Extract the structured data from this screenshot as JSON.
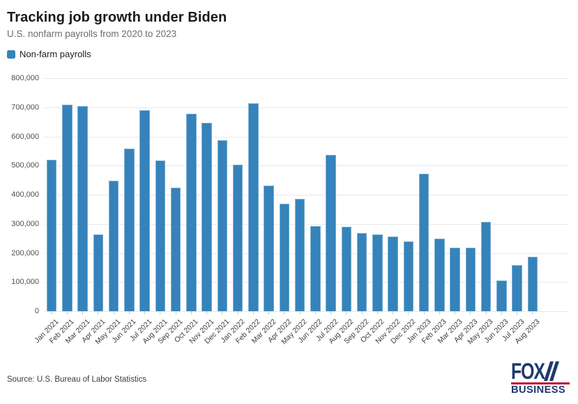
{
  "header": {
    "title": "Tracking job growth under Biden",
    "subtitle": "U.S. nonfarm payrolls from 2020 to 2023"
  },
  "legend": {
    "label": "Non-farm payrolls"
  },
  "chart_data": {
    "type": "bar",
    "title": "Tracking job growth under Biden",
    "subtitle": "U.S. nonfarm payrolls from 2020 to 2023",
    "legend_entries": [
      "Non-farm payrolls"
    ],
    "legend_position": "top-left",
    "grid": "horizontal",
    "xlabel": "",
    "ylabel": "",
    "ylim": [
      0,
      800000
    ],
    "y_ticks": [
      0,
      100000,
      200000,
      300000,
      400000,
      500000,
      600000,
      700000,
      800000
    ],
    "y_tick_labels": [
      "0",
      "100,000",
      "200,000",
      "300,000",
      "400,000",
      "500,000",
      "600,000",
      "700,000",
      "800,000"
    ],
    "categories": [
      "Jan 2021",
      "Feb 2021",
      "Mar 2021",
      "Apr 2021",
      "May 2021",
      "Jun 2021",
      "Jul 2021",
      "Aug 2021",
      "Sep 2021",
      "Oct 2021",
      "Nov 2021",
      "Dec 2021",
      "Jan 2022",
      "Feb 2022",
      "Mar 2022",
      "Apr 2022",
      "May 2022",
      "Jun 2022",
      "Jul 2022",
      "Aug 2022",
      "Sep 2022",
      "Oct 2022",
      "Nov 2022",
      "Dec 2022",
      "Jan 2023",
      "Feb 2023",
      "Mar 2023",
      "Apr 2023",
      "May 2023",
      "Jun 2023",
      "Jul 2023",
      "Aug 2023"
    ],
    "values": [
      520000,
      710000,
      704000,
      263000,
      447000,
      557000,
      689000,
      517000,
      424000,
      677000,
      647000,
      588000,
      504000,
      714000,
      430000,
      368000,
      386000,
      293000,
      537000,
      290000,
      269000,
      263000,
      256000,
      239000,
      472000,
      248000,
      217000,
      217000,
      306000,
      105000,
      157000,
      187000
    ]
  },
  "colors": {
    "bar": "#3583ba",
    "gridline": "#e8e8e8",
    "logo_navy": "#1e3a6e",
    "logo_red": "#c2132e"
  },
  "footer": {
    "source": "Source: U.S. Bureau of Labor Statistics"
  },
  "logo": {
    "line1": "FOX",
    "line2": "BUSINESS"
  }
}
